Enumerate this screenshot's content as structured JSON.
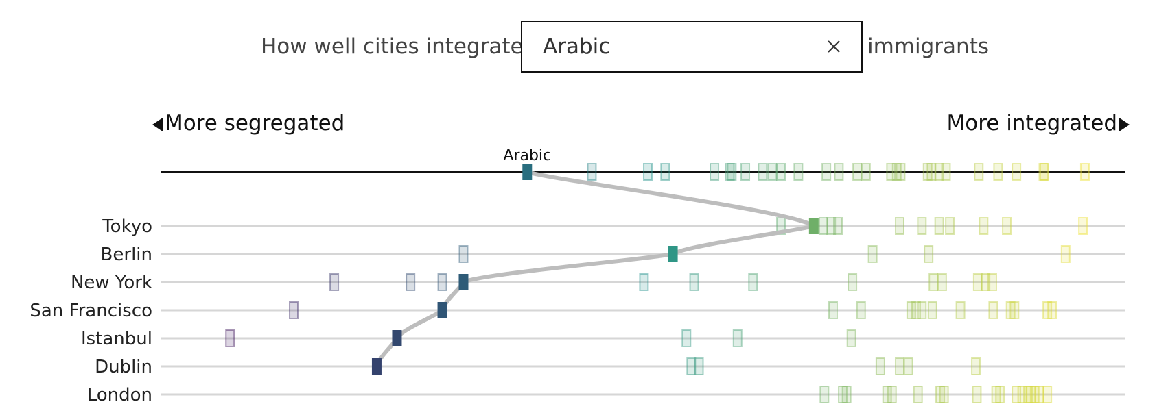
{
  "header": {
    "lead": "How well cities integrate",
    "trail": "immigrants",
    "search": {
      "value": "Arabic",
      "placeholder": ""
    }
  },
  "axis_labels": {
    "left": "More segregated",
    "right": "More integrated"
  },
  "colors": {
    "path": "#bdbdbd",
    "axis": "#111111",
    "row_line": "#d6d6d6",
    "scale_low": "#440154",
    "scale_mid": "#21918c",
    "scale_high": "#fde725"
  },
  "chart_data": {
    "type": "scatter",
    "xlim": [
      0,
      1
    ],
    "selected": {
      "name": "Arabic",
      "overall": 0.38
    },
    "overall_row": [
      0.447,
      0.505,
      0.523,
      0.574,
      0.59,
      0.592,
      0.606,
      0.624,
      0.634,
      0.643,
      0.661,
      0.69,
      0.703,
      0.722,
      0.731,
      0.757,
      0.763,
      0.767,
      0.795,
      0.799,
      0.807,
      0.814,
      0.848,
      0.868,
      0.887,
      0.915,
      0.916,
      0.958
    ],
    "rows": [
      {
        "city": "Tokyo",
        "selected": 0.677,
        "others": [
          0.643,
          0.687,
          0.695,
          0.702,
          0.766,
          0.789,
          0.807,
          0.818,
          0.853,
          0.877,
          0.956
        ]
      },
      {
        "city": "Berlin",
        "selected": 0.531,
        "others": [
          0.314,
          0.738,
          0.796,
          0.938
        ]
      },
      {
        "city": "New York",
        "selected": 0.314,
        "others": [
          0.18,
          0.259,
          0.292,
          0.501,
          0.553,
          0.614,
          0.717,
          0.801,
          0.81,
          0.847,
          0.855,
          0.862
        ]
      },
      {
        "city": "San Francisco",
        "selected": 0.292,
        "others": [
          0.138,
          0.697,
          0.726,
          0.778,
          0.783,
          0.789,
          0.8,
          0.829,
          0.863,
          0.881,
          0.885,
          0.919,
          0.924
        ]
      },
      {
        "city": "Istanbul",
        "selected": 0.245,
        "others": [
          0.072,
          0.545,
          0.598,
          0.716
        ]
      },
      {
        "city": "Dublin",
        "selected": 0.224,
        "others": [
          0.55,
          0.558,
          0.746,
          0.766,
          0.775,
          0.845
        ]
      },
      {
        "city": "London",
        "selected": null,
        "others": [
          0.688,
          0.707,
          0.711,
          0.753,
          0.758,
          0.785,
          0.808,
          0.812,
          0.846,
          0.866,
          0.87,
          0.887,
          0.893,
          0.899,
          0.902,
          0.906,
          0.911,
          0.919
        ]
      }
    ]
  }
}
